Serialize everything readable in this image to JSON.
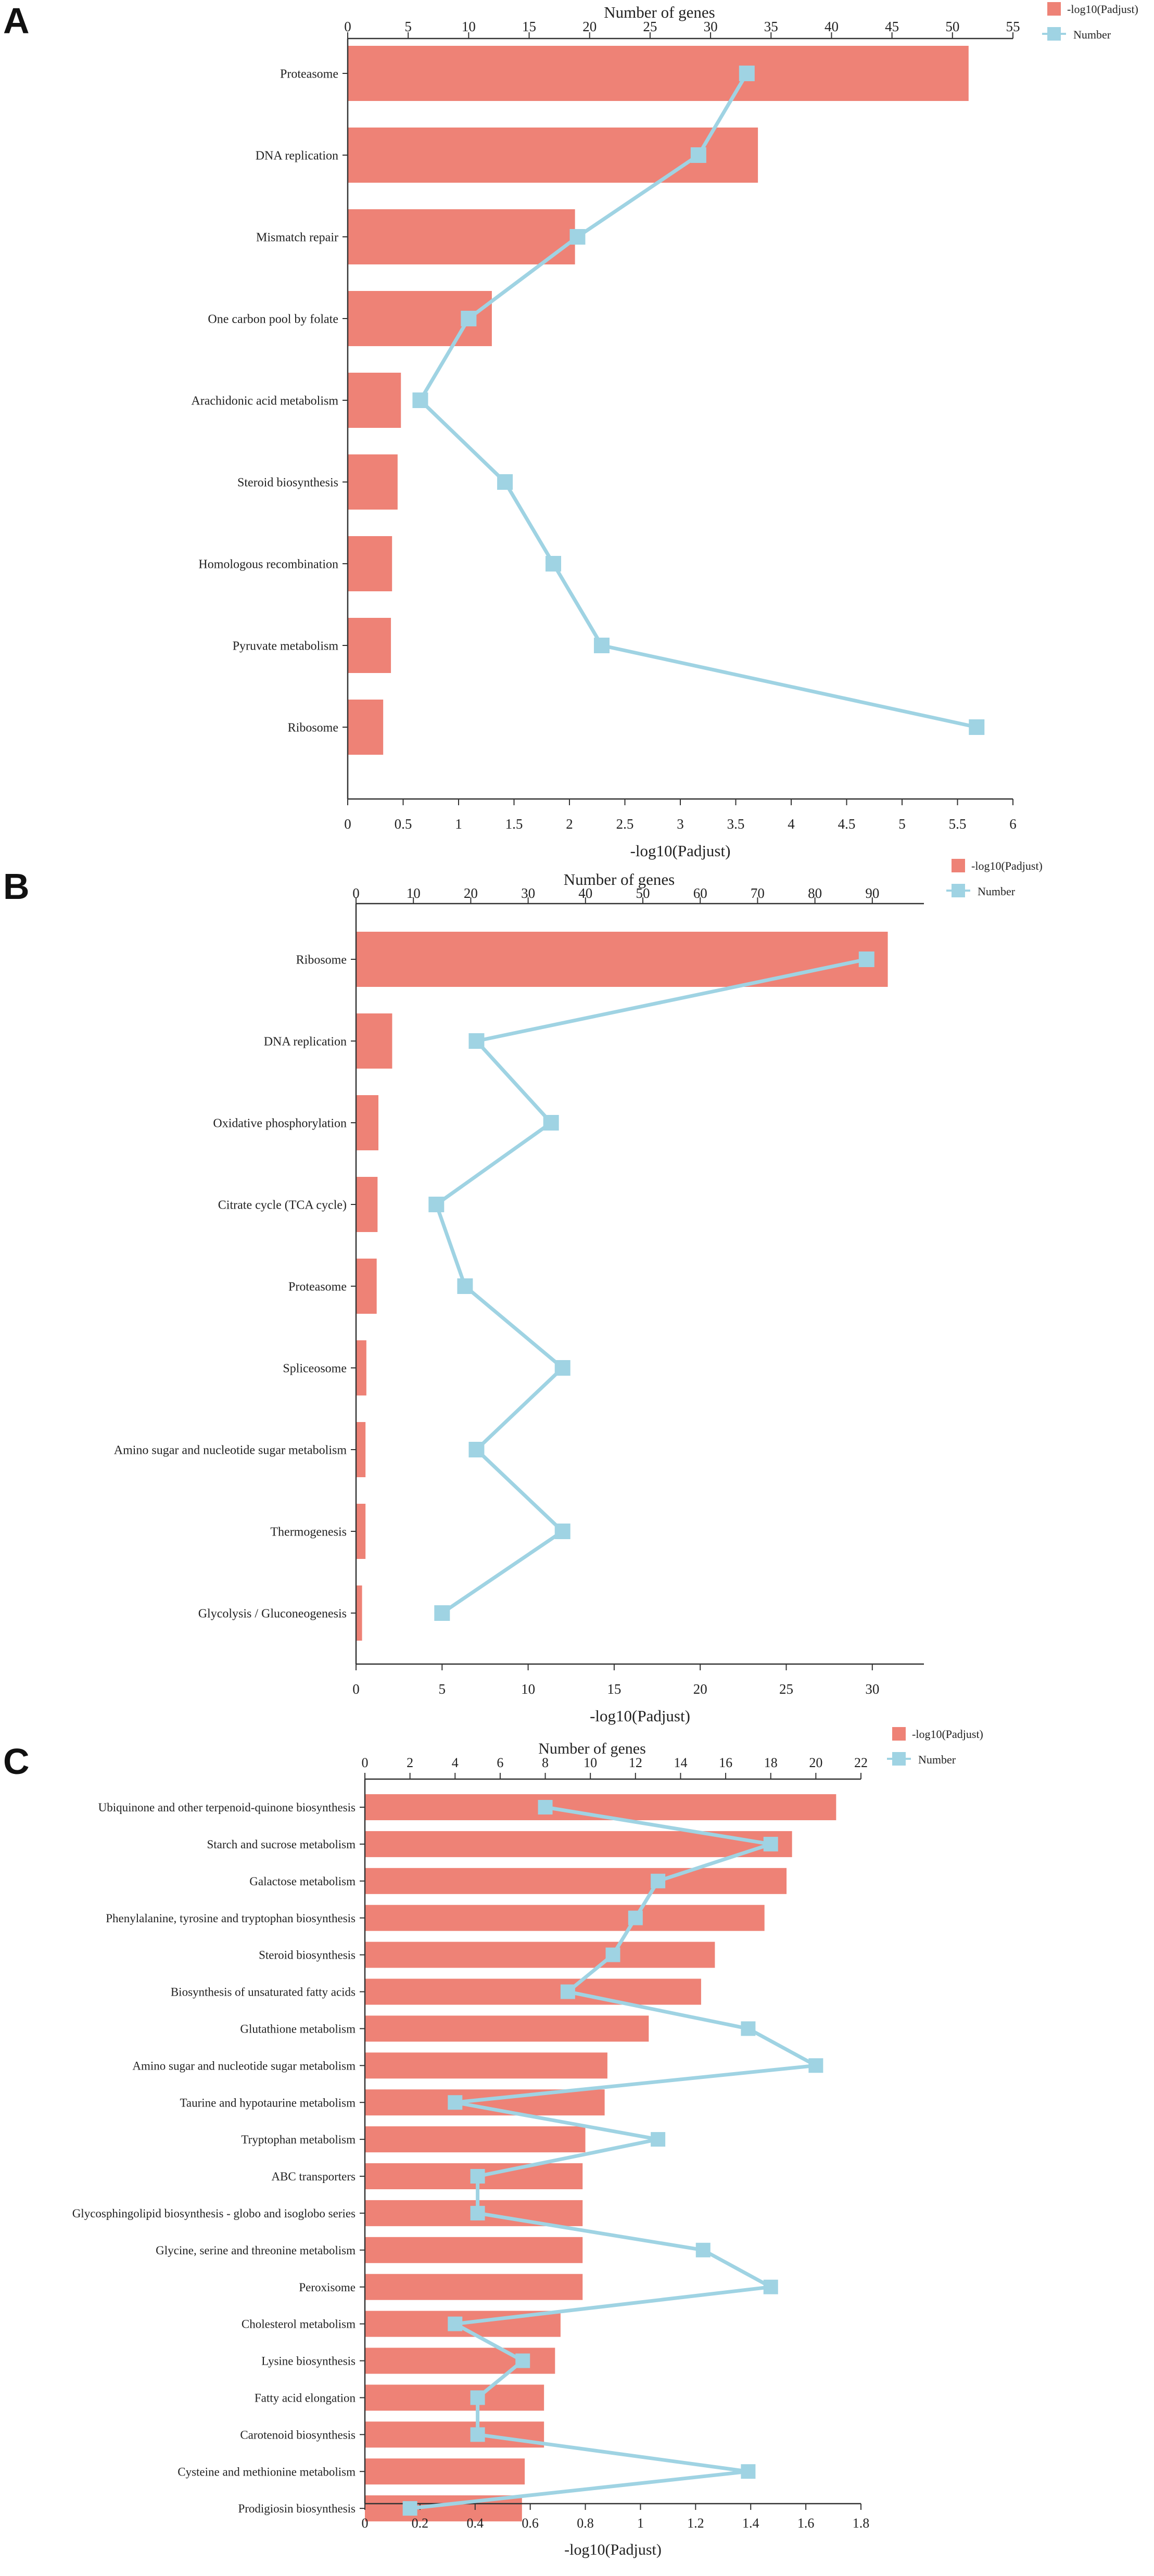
{
  "chart_data": [
    {
      "type": "bar",
      "panel_label": "A",
      "title": "",
      "categories": [
        "Proteasome",
        "DNA replication",
        "Mismatch repair",
        "One carbon pool by folate",
        "Arachidonic acid metabolism",
        "Steroid biosynthesis",
        "Homologous recombination",
        "Pyruvate metabolism",
        "Ribosome"
      ],
      "series": [
        {
          "name": "-log10(Padjust)",
          "kind": "bar",
          "axis": "bottom",
          "values": [
            5.6,
            3.7,
            2.05,
            1.3,
            0.48,
            0.45,
            0.4,
            0.39,
            0.32
          ]
        },
        {
          "name": "Number",
          "kind": "line",
          "axis": "top",
          "values": [
            33,
            29,
            19,
            10,
            6,
            13,
            17,
            21,
            52
          ]
        }
      ],
      "xlabel_bottom": "-log10(Padjust)",
      "xlabel_top": "Number of genes",
      "bottom_axis": {
        "min": 0,
        "max": 6,
        "ticks": [
          "0",
          "0.5",
          "1",
          "1.5",
          "2",
          "2.5",
          "3",
          "3.5",
          "4",
          "4.5",
          "5",
          "5.5",
          "6"
        ]
      },
      "top_axis": {
        "min": 0,
        "max": 55,
        "ticks": [
          "0",
          "5",
          "10",
          "15",
          "20",
          "25",
          "30",
          "35",
          "40",
          "45",
          "50",
          "55"
        ]
      },
      "legend": [
        "-log10(Padjust)",
        "Number"
      ],
      "legend_position": "top-right"
    },
    {
      "type": "bar",
      "panel_label": "B",
      "title": "",
      "categories": [
        "Ribosome",
        "DNA replication",
        "Oxidative phosphorylation",
        "Citrate cycle (TCA cycle)",
        "Proteasome",
        "Spliceosome",
        "Amino sugar and nucleotide sugar metabolism",
        "Thermogenesis",
        "Glycolysis / Gluconeogenesis"
      ],
      "series": [
        {
          "name": "-log10(Padjust)",
          "kind": "bar",
          "axis": "bottom",
          "values": [
            30.9,
            2.1,
            1.3,
            1.25,
            1.2,
            0.6,
            0.55,
            0.55,
            0.35
          ]
        },
        {
          "name": "Number",
          "kind": "line",
          "axis": "top",
          "values": [
            89,
            21,
            34,
            14,
            19,
            36,
            21,
            36,
            15
          ]
        }
      ],
      "xlabel_bottom": "-log10(Padjust)",
      "xlabel_top": "Number of genes",
      "bottom_axis": {
        "min": 0,
        "max": 33,
        "ticks": [
          "0",
          "5",
          "10",
          "15",
          "20",
          "25",
          "30"
        ]
      },
      "top_axis": {
        "min": 0,
        "max": 99,
        "ticks": [
          "0",
          "10",
          "20",
          "30",
          "40",
          "50",
          "60",
          "70",
          "80",
          "90"
        ]
      },
      "legend": [
        "-log10(Padjust)",
        "Number"
      ],
      "legend_position": "top-right"
    },
    {
      "type": "bar",
      "panel_label": "C",
      "title": "",
      "categories": [
        "Ubiquinone and other terpenoid-quinone biosynthesis",
        "Starch and sucrose metabolism",
        "Galactose metabolism",
        "Phenylalanine, tyrosine and tryptophan biosynthesis",
        "Steroid biosynthesis",
        "Biosynthesis of unsaturated fatty acids",
        "Glutathione metabolism",
        "Amino sugar and nucleotide sugar metabolism",
        "Taurine and hypotaurine metabolism",
        "Tryptophan metabolism",
        "ABC transporters",
        "Glycosphingolipid biosynthesis - globo and isoglobo series",
        "Glycine, serine and threonine metabolism",
        "Peroxisome",
        "Cholesterol metabolism",
        "Lysine biosynthesis",
        "Fatty acid elongation",
        "Carotenoid biosynthesis",
        "Cysteine and methionine metabolism",
        "Prodigiosin biosynthesis"
      ],
      "series": [
        {
          "name": "-log10(Padjust)",
          "kind": "bar",
          "axis": "bottom",
          "values": [
            1.71,
            1.55,
            1.53,
            1.45,
            1.27,
            1.22,
            1.03,
            0.88,
            0.87,
            0.8,
            0.79,
            0.79,
            0.79,
            0.79,
            0.71,
            0.69,
            0.65,
            0.65,
            0.58,
            0.57
          ]
        },
        {
          "name": "Number",
          "kind": "line",
          "axis": "top",
          "values": [
            8,
            18,
            13,
            12,
            11,
            9,
            17,
            20,
            4,
            13,
            5,
            5,
            15,
            18,
            4,
            7,
            5,
            5,
            17,
            2
          ]
        }
      ],
      "xlabel_bottom": "-log10(Padjust)",
      "xlabel_top": "Number of genes",
      "bottom_axis": {
        "min": 0,
        "max": 1.8,
        "ticks": [
          "0",
          "0.2",
          "0.4",
          "0.6",
          "0.8",
          "1",
          "1.2",
          "1.4",
          "1.6",
          "1.8"
        ]
      },
      "top_axis": {
        "min": 0,
        "max": 22,
        "ticks": [
          "0",
          "2",
          "4",
          "6",
          "8",
          "10",
          "12",
          "14",
          "16",
          "18",
          "20",
          "22"
        ]
      },
      "legend": [
        "-log10(Padjust)",
        "Number"
      ],
      "legend_position": "top-right"
    }
  ],
  "colors": {
    "bar": "#ee8276",
    "line": "#9fd3e3",
    "axis": "#333333",
    "text": "#222222"
  }
}
